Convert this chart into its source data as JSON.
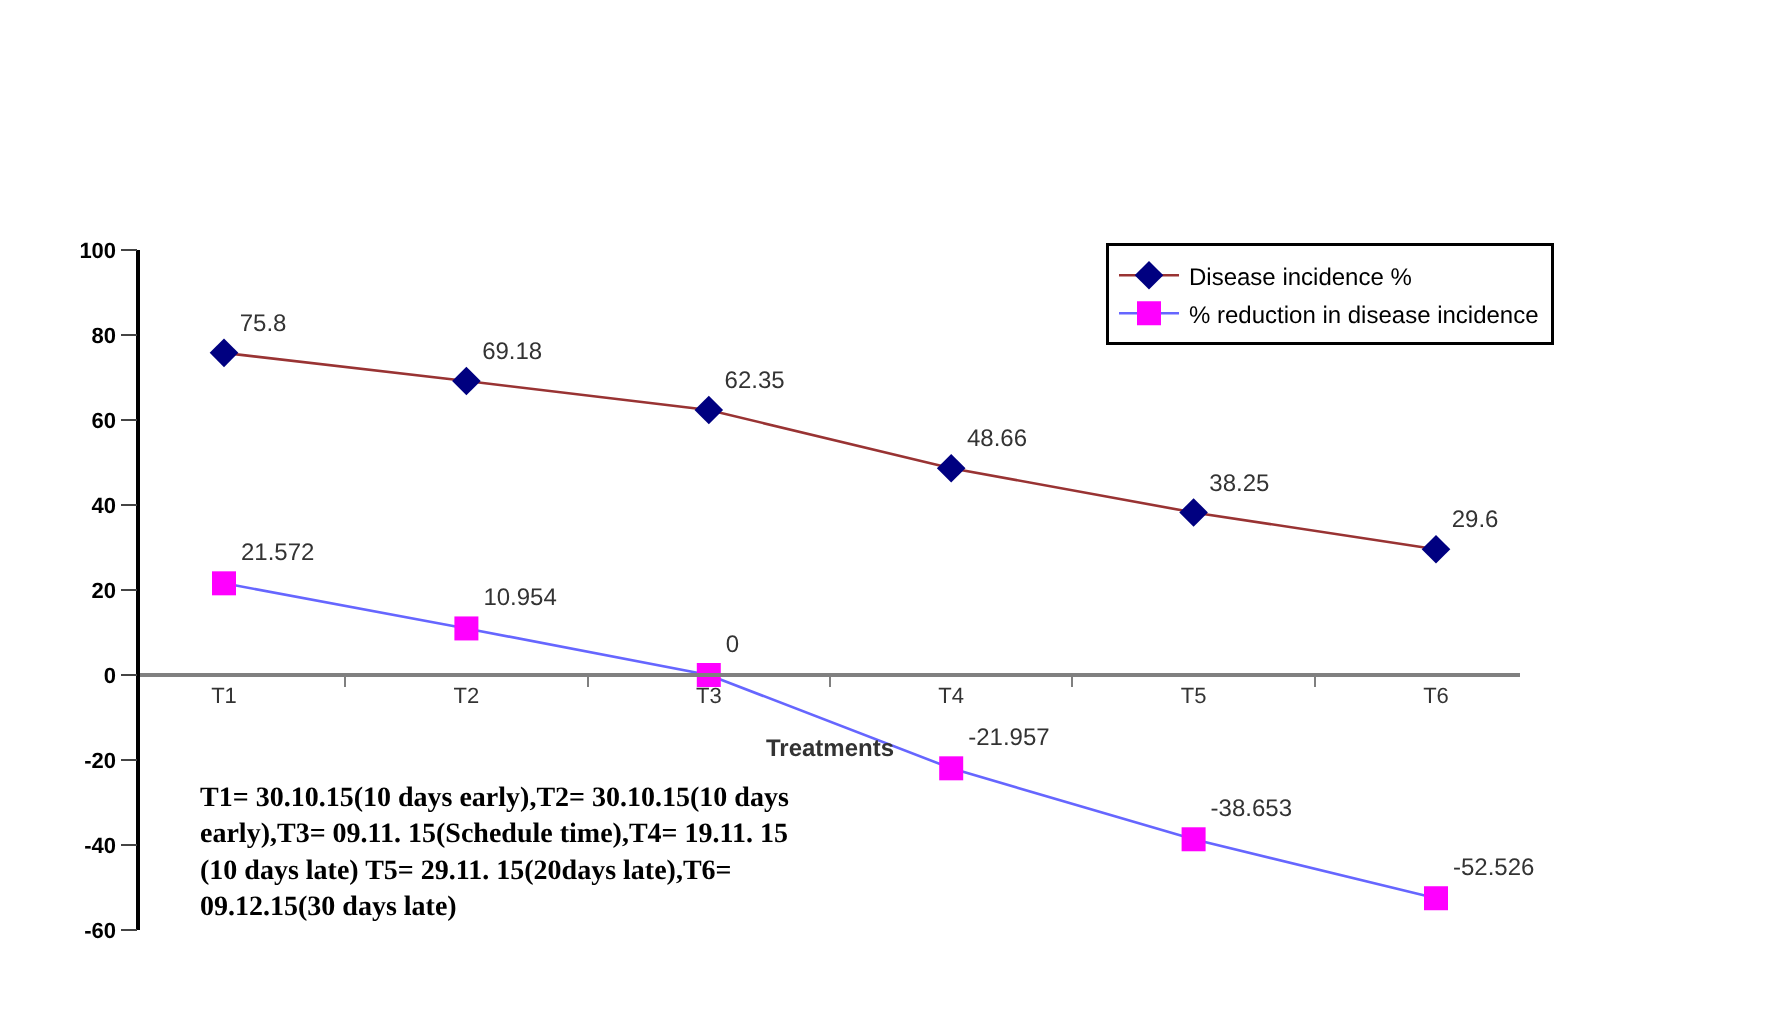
{
  "chart_data": {
    "type": "line",
    "xlabel": "Treatments",
    "categories": [
      "T1",
      "T2",
      "T3",
      "T4",
      "T5",
      "T6"
    ],
    "series": [
      {
        "name": "Disease incidence %",
        "color": "#993333",
        "colors": [
          "#000080",
          "#000080",
          "#000080",
          "#000080",
          "#000080",
          "#000080"
        ],
        "marker": "diamond",
        "values": [
          75.8,
          69.18,
          62.35,
          48.66,
          38.25,
          29.6
        ]
      },
      {
        "name": "% reduction in disease incidence",
        "color": "#6666ff",
        "colors": [
          "#ff00ff",
          "#ff00ff",
          "#ff00ff",
          "#ff00ff",
          "#ff00ff",
          "#ff00ff"
        ],
        "marker": "square",
        "values": [
          21.572,
          10.954,
          0,
          -21.957,
          -38.653,
          -52.526
        ]
      }
    ],
    "ylim": [
      -60,
      100
    ],
    "yticks": [
      -60,
      -40,
      -20,
      0,
      20,
      40,
      60,
      80,
      100
    ],
    "data_labels": true,
    "legend": "top right",
    "line_style": "solid",
    "annotations": [
      "T1= 30.10.15(10 days early),T2= 30.10.15(10 days early),T3= 09.11. 15(Schedule time),T4= 19.11. 15 (10 days late) T5= 29.11. 15(20days late),T6= 09.12.15(30 days late)"
    ]
  }
}
